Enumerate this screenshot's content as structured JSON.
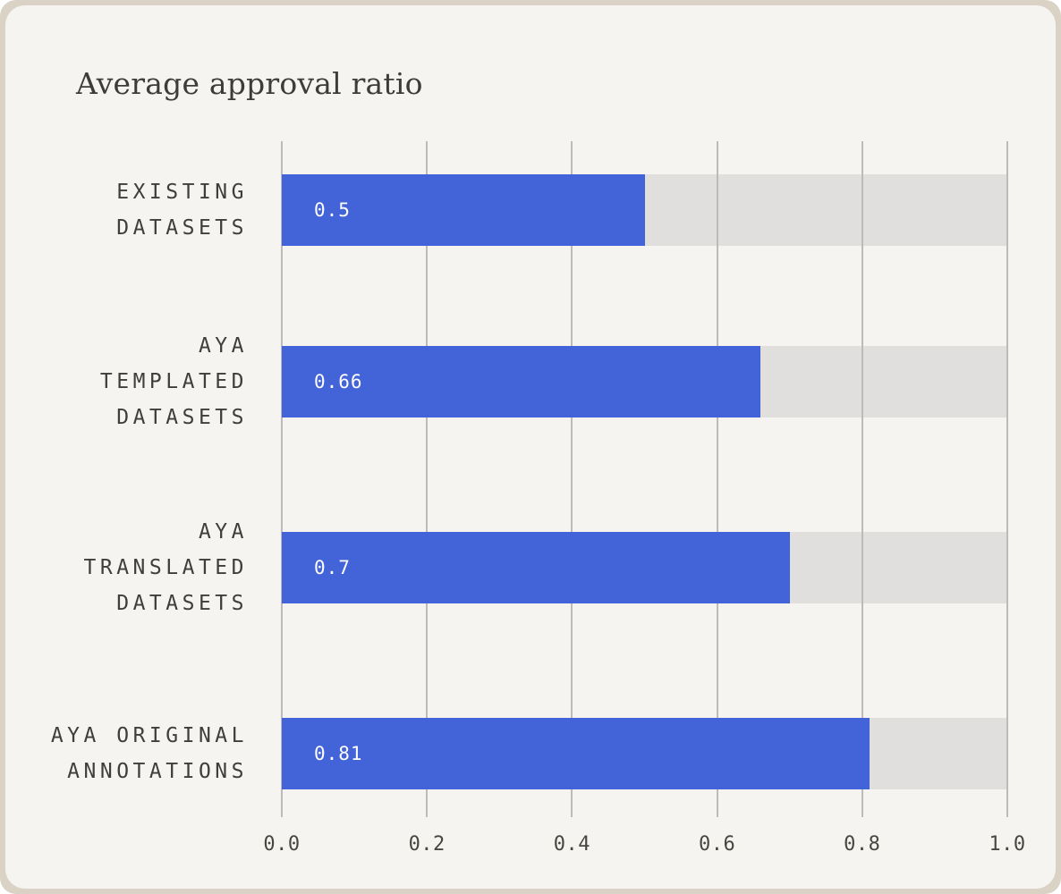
{
  "page": {
    "frame_color": "#d9d2c5",
    "card_color": "#f5f4f1"
  },
  "chart_data": {
    "type": "bar",
    "orientation": "horizontal",
    "title": "Average approval ratio",
    "categories": [
      "EXISTING DATASETS",
      "AYA TEMPLATED DATASETS",
      "AYA TRANSLATED DATASETS",
      "AYA ORIGINAL ANNOTATIONS"
    ],
    "category_lines": [
      [
        "EXISTING",
        "DATASETS"
      ],
      [
        "AYA",
        "TEMPLATED",
        "DATASETS"
      ],
      [
        "AYA",
        "TRANSLATED",
        "DATASETS"
      ],
      [
        "AYA ORIGINAL",
        "ANNOTATIONS"
      ]
    ],
    "values": [
      0.5,
      0.66,
      0.7,
      0.81
    ],
    "value_labels": [
      "0.5",
      "0.66",
      "0.7",
      "0.81"
    ],
    "xlabel": "",
    "ylabel": "",
    "xlim": [
      0,
      1
    ],
    "x_ticks": [
      0,
      0.2,
      0.4,
      0.6,
      0.8,
      1
    ],
    "x_tick_labels": [
      "0.0",
      "0.2",
      "0.4",
      "0.6",
      "0.8",
      "1.0"
    ],
    "grid": true,
    "legend": false,
    "colors": {
      "bar": "#4363d8",
      "bar_track": "#e0dfdd",
      "gridline": "#bcbbb9",
      "value_label": "#ffffff",
      "category_label": "#3f3e3c",
      "tick_label": "#48463f",
      "title": "#3d3c38"
    }
  }
}
